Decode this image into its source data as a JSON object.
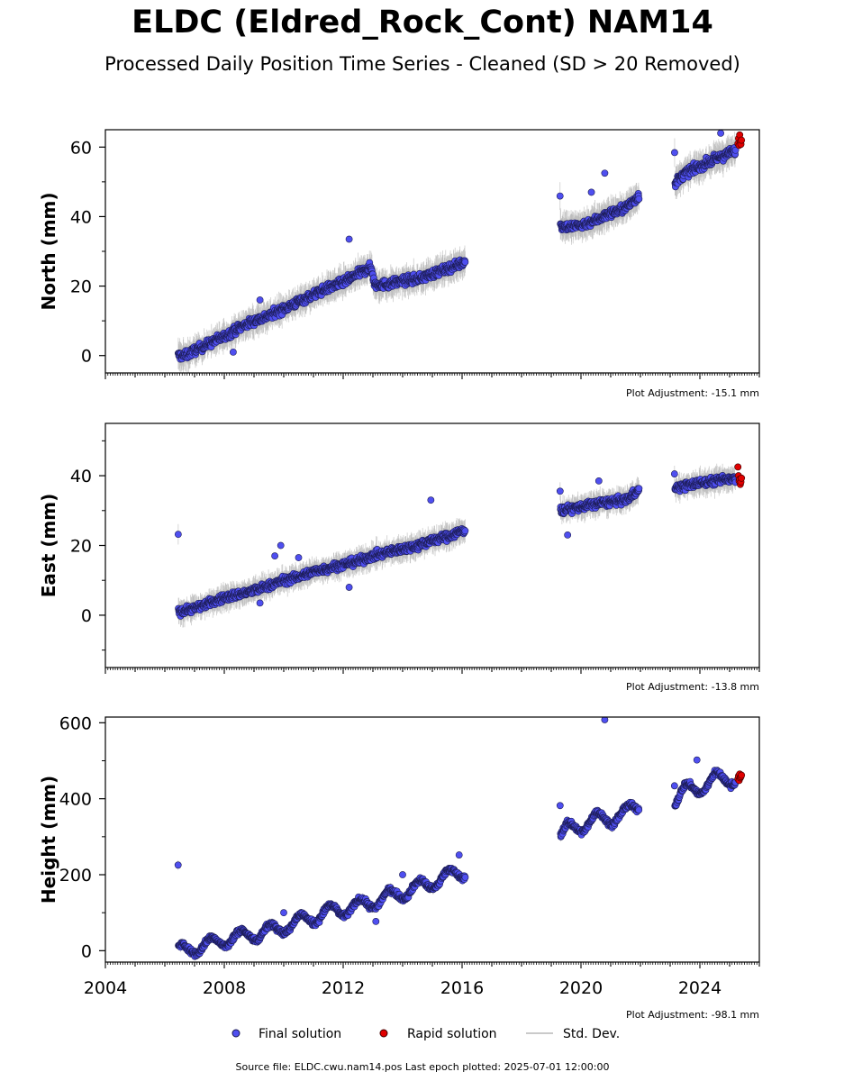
{
  "figure": {
    "title": "ELDC (Eldred_Rock_Cont) NAM14",
    "subtitle": "Processed Daily Position Time Series - Cleaned (SD > 20 Removed)",
    "source_note": "Source file: ELDC.cwu.nam14.pos  Last epoch plotted: 2025-07-01 12:00:00"
  },
  "legend": {
    "final_label": "Final solution",
    "rapid_label": "Rapid solution",
    "std_label": "Std. Dev."
  },
  "colors": {
    "final": "#4f4ff0",
    "rapid": "#e00000",
    "std": "#b8b8b8",
    "axis": "#000000"
  },
  "chart_data": [
    {
      "type": "scatter",
      "ylabel": "North (mm)",
      "adjustment": "Plot Adjustment: -15.1 mm",
      "xlim": [
        2004,
        2026
      ],
      "ylim": [
        -5,
        65
      ],
      "yticks": [
        0,
        20,
        40,
        60
      ],
      "xtick_labels": false,
      "segments": [
        {
          "x": [
            2006.45,
            2006.7,
            2007,
            2007.5,
            2008,
            2008.5,
            2009,
            2009.5,
            2010,
            2010.5,
            2011,
            2011.5,
            2012,
            2012.5,
            2012.95,
            2013.05,
            2013.5,
            2014,
            2014.5,
            2015,
            2015.5,
            2016.1
          ],
          "y": [
            0,
            0,
            1.5,
            3.5,
            5.5,
            8,
            10,
            11.5,
            13.5,
            15.5,
            17.5,
            19.5,
            21,
            23.5,
            25.5,
            20.5,
            20.5,
            21.5,
            22,
            23.5,
            25,
            27
          ]
        },
        {
          "x": [
            2019.3,
            2019.6,
            2020,
            2020.5,
            2021,
            2021.5,
            2021.95
          ],
          "y": [
            37.5,
            37,
            37.5,
            39,
            41,
            42.5,
            46
          ]
        },
        {
          "x": [
            2023.15,
            2023.5,
            2024,
            2024.5,
            2025.2
          ],
          "y": [
            49.5,
            52.5,
            54.5,
            56.5,
            59
          ]
        }
      ],
      "outliers": [
        {
          "x": 2012.2,
          "y": 33.5
        },
        {
          "x": 2020.8,
          "y": 52.5
        },
        {
          "x": 2020.35,
          "y": 47
        },
        {
          "x": 2009.2,
          "y": 16
        },
        {
          "x": 2008.3,
          "y": 1
        },
        {
          "x": 2024.7,
          "y": 64
        }
      ],
      "rapid": {
        "x": [
          2025.28,
          2025.3,
          2025.32,
          2025.34,
          2025.36,
          2025.38,
          2025.4
        ],
        "y": [
          61,
          62.5,
          60.5,
          63.5,
          61.5,
          60.8,
          62
        ]
      },
      "noise": 1.2,
      "std_spread": 3
    },
    {
      "type": "scatter",
      "ylabel": "East (mm)",
      "adjustment": "Plot Adjustment: -13.8 mm",
      "xlim": [
        2004,
        2026
      ],
      "ylim": [
        -15,
        55
      ],
      "yticks": [
        0,
        20,
        40
      ],
      "xtick_labels": false,
      "segments": [
        {
          "x": [
            2006.45,
            2007,
            2007.5,
            2008,
            2008.5,
            2009,
            2009.5,
            2010,
            2010.5,
            2011,
            2011.5,
            2012,
            2012.5,
            2013,
            2013.5,
            2014,
            2014.5,
            2015,
            2015.5,
            2016.1
          ],
          "y": [
            1,
            2,
            3.5,
            5,
            6,
            7,
            8.5,
            10,
            11,
            12.5,
            13.5,
            14.5,
            15.5,
            17,
            18,
            19,
            20,
            21.5,
            22.5,
            24.5
          ]
        },
        {
          "x": [
            2019.3,
            2019.6,
            2020,
            2020.5,
            2021,
            2021.5,
            2021.95
          ],
          "y": [
            30,
            30.5,
            31,
            32,
            32.5,
            33,
            36
          ]
        },
        {
          "x": [
            2023.15,
            2023.5,
            2024,
            2024.5,
            2025.2
          ],
          "y": [
            36.5,
            37,
            38,
            38.5,
            39.5
          ]
        }
      ],
      "outliers": [
        {
          "x": 2009.9,
          "y": 20
        },
        {
          "x": 2009.7,
          "y": 17
        },
        {
          "x": 2010.5,
          "y": 16.5
        },
        {
          "x": 2012.2,
          "y": 8
        },
        {
          "x": 2014.95,
          "y": 33
        },
        {
          "x": 2019.55,
          "y": 23
        },
        {
          "x": 2020.6,
          "y": 38.5
        },
        {
          "x": 2009.2,
          "y": 3.5
        }
      ],
      "rapid": {
        "x": [
          2025.28,
          2025.3,
          2025.32,
          2025.34,
          2025.36,
          2025.38,
          2025.4
        ],
        "y": [
          42.5,
          40,
          38.5,
          39,
          37.5,
          38.2,
          39.3
        ]
      },
      "noise": 1.1,
      "std_spread": 2.5
    },
    {
      "type": "scatter",
      "ylabel": "Height (mm)",
      "adjustment": "Plot Adjustment: -98.1 mm",
      "xlim": [
        2004,
        2026
      ],
      "ylim": [
        -30,
        615
      ],
      "yticks": [
        0,
        200,
        400,
        600
      ],
      "xtick_labels": true,
      "xticks": [
        2004,
        2008,
        2012,
        2016,
        2020,
        2024
      ],
      "segments": [
        {
          "x": [
            2006.45,
            2007,
            2007.5,
            2008,
            2008.5,
            2009,
            2009.5,
            2010,
            2010.5,
            2011,
            2011.5,
            2012,
            2012.5,
            2013,
            2013.5,
            2014,
            2014.5,
            2015,
            2015.5,
            2016.1
          ],
          "y": [
            -5,
            10,
            15,
            30,
            35,
            45,
            50,
            65,
            75,
            90,
            100,
            110,
            115,
            130,
            140,
            155,
            165,
            180,
            195,
            210
          ]
        },
        {
          "x": [
            2019.3,
            2019.6,
            2020,
            2020.5,
            2021,
            2021.5,
            2021.95
          ],
          "y": [
            300,
            320,
            330,
            345,
            350,
            360,
            385
          ]
        },
        {
          "x": [
            2023.15,
            2023.5,
            2024,
            2024.5,
            2025.2
          ],
          "y": [
            395,
            420,
            430,
            450,
            455
          ]
        }
      ],
      "seasonal_amp": 18,
      "outliers": [
        {
          "x": 2020.8,
          "y": 608
        },
        {
          "x": 2023.9,
          "y": 502
        },
        {
          "x": 2014.0,
          "y": 200
        },
        {
          "x": 2015.9,
          "y": 252
        },
        {
          "x": 2013.1,
          "y": 77
        },
        {
          "x": 2010.0,
          "y": 100
        }
      ],
      "rapid": {
        "x": [
          2025.28,
          2025.3,
          2025.32,
          2025.34,
          2025.36,
          2025.38,
          2025.4
        ],
        "y": [
          452,
          460,
          448,
          465,
          455,
          458,
          462
        ]
      },
      "noise": 7,
      "std_spread": 8
    }
  ]
}
